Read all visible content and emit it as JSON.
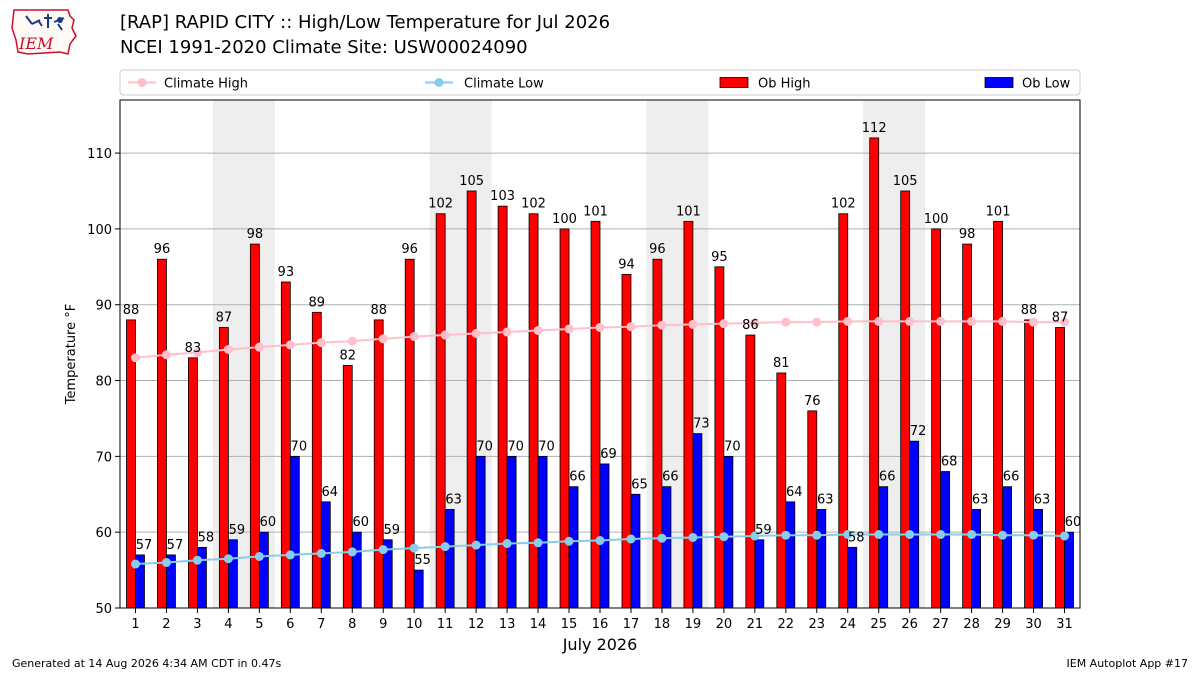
{
  "header": {
    "title_line1": "[RAP] RAPID CITY :: High/Low Temperature for Jul 2026",
    "title_line2": "NCEI 1991-2020 Climate Site: USW00024090",
    "logo_text": "IEM"
  },
  "footer": {
    "generated": "Generated at 14 Aug 2026 4:34 AM CDT in 0.47s",
    "app": "IEM Autoplot App #17"
  },
  "colors": {
    "ob_high": "#ff0000",
    "ob_low": "#0000ff",
    "climate_high": "#ffc0cb",
    "climate_low": "#87ceeb",
    "weekend_shade": "#eeeeee",
    "grid": "#b0b0b0"
  },
  "chart_data": {
    "type": "bar",
    "xlabel": "July 2026",
    "ylabel": "Temperature °F",
    "ylim": [
      50,
      117
    ],
    "yticks": [
      50,
      60,
      70,
      80,
      90,
      100,
      110
    ],
    "grid": "horizontal",
    "legend_placement": "top",
    "categories": [
      "1",
      "2",
      "3",
      "4",
      "5",
      "6",
      "7",
      "8",
      "9",
      "10",
      "11",
      "12",
      "13",
      "14",
      "15",
      "16",
      "17",
      "18",
      "19",
      "20",
      "21",
      "22",
      "23",
      "24",
      "25",
      "26",
      "27",
      "28",
      "29",
      "30",
      "31"
    ],
    "shaded_days": [
      [
        4,
        5
      ],
      [
        11,
        12
      ],
      [
        18,
        19
      ],
      [
        25,
        26
      ]
    ],
    "series": [
      {
        "name": "Climate High",
        "kind": "line",
        "values": [
          83.0,
          83.4,
          83.7,
          84.1,
          84.4,
          84.7,
          85.0,
          85.2,
          85.5,
          85.8,
          86.0,
          86.2,
          86.4,
          86.6,
          86.8,
          87.0,
          87.1,
          87.3,
          87.4,
          87.5,
          87.6,
          87.7,
          87.7,
          87.8,
          87.8,
          87.8,
          87.8,
          87.8,
          87.8,
          87.7,
          87.7
        ]
      },
      {
        "name": "Climate Low",
        "kind": "line",
        "values": [
          55.8,
          56.0,
          56.3,
          56.5,
          56.8,
          57.0,
          57.2,
          57.4,
          57.7,
          57.9,
          58.1,
          58.3,
          58.5,
          58.6,
          58.8,
          58.9,
          59.1,
          59.2,
          59.3,
          59.4,
          59.5,
          59.6,
          59.6,
          59.7,
          59.7,
          59.7,
          59.7,
          59.7,
          59.6,
          59.6,
          59.5
        ]
      },
      {
        "name": "Ob High",
        "kind": "bar",
        "values": [
          88,
          96,
          83,
          87,
          98,
          93,
          89,
          82,
          88,
          96,
          102,
          105,
          103,
          102,
          100,
          101,
          94,
          96,
          101,
          95,
          86,
          81,
          76,
          102,
          112,
          105,
          100,
          98,
          101,
          88,
          87
        ]
      },
      {
        "name": "Ob Low",
        "kind": "bar",
        "values": [
          57,
          57,
          58,
          59,
          60,
          70,
          64,
          60,
          59,
          55,
          63,
          70,
          70,
          70,
          66,
          69,
          65,
          66,
          73,
          70,
          59,
          64,
          63,
          58,
          66,
          72,
          68,
          63,
          66,
          63,
          60
        ]
      }
    ]
  }
}
